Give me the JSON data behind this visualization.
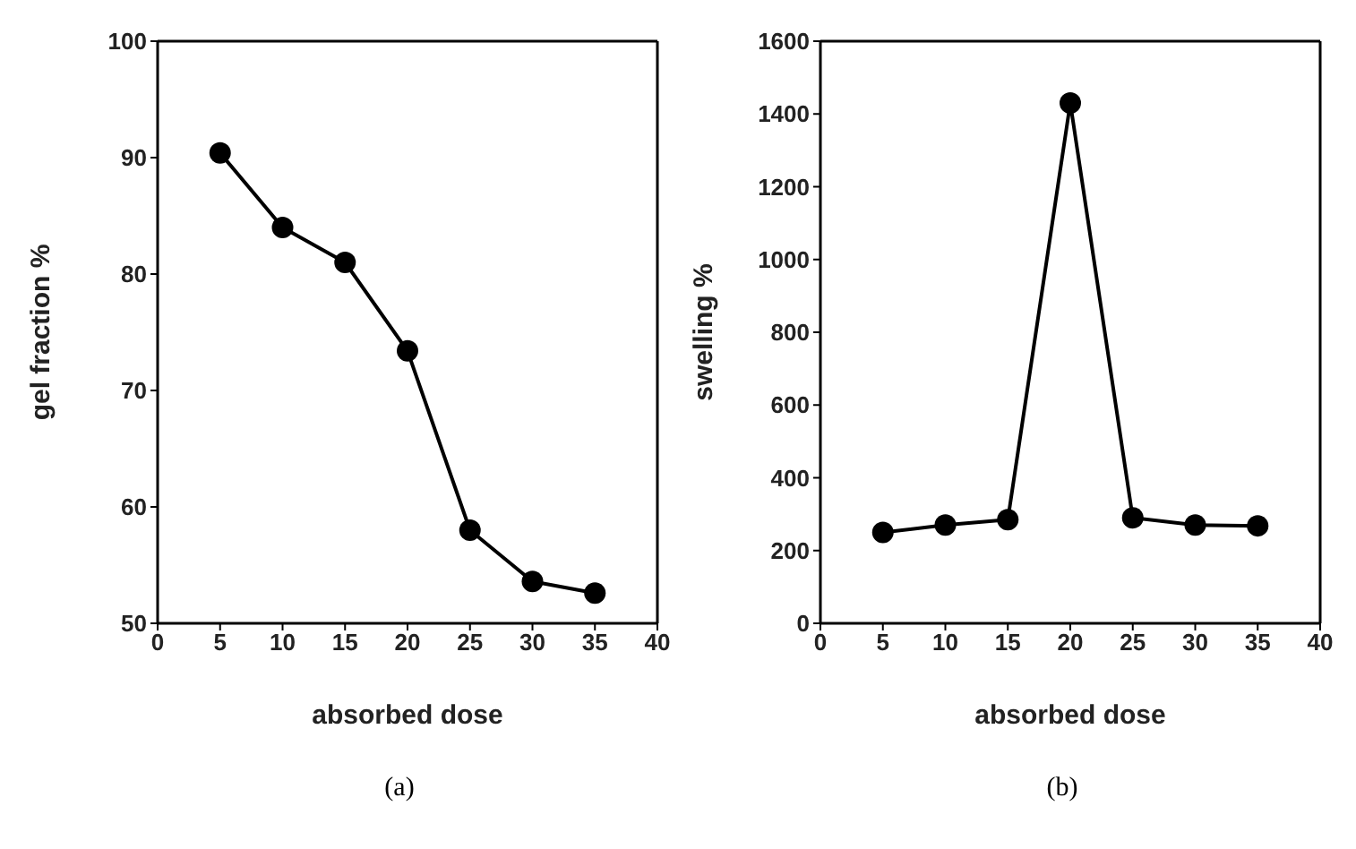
{
  "chart_data": [
    {
      "type": "line",
      "xlabel": "absorbed dose",
      "ylabel": "gel fraction %",
      "x": [
        5,
        10,
        15,
        20,
        25,
        30,
        35
      ],
      "series": [
        {
          "color": "#000000",
          "values": [
            90.4,
            84,
            81,
            73.4,
            58,
            53.6,
            52.6
          ]
        }
      ],
      "xlim": [
        0,
        40
      ],
      "xticks": [
        0,
        5,
        10,
        15,
        20,
        25,
        30,
        35,
        40
      ],
      "ylim": [
        50,
        100
      ],
      "yticks": [
        50,
        60,
        70,
        80,
        90,
        100
      ],
      "marker": "circle",
      "annotations": [
        "(a)"
      ]
    },
    {
      "type": "line",
      "xlabel": "absorbed dose",
      "ylabel": "swelling %",
      "x": [
        5,
        10,
        15,
        20,
        25,
        30,
        35
      ],
      "series": [
        {
          "color": "#000000",
          "values": [
            250,
            270,
            285,
            1430,
            290,
            270,
            268
          ]
        }
      ],
      "xlim": [
        0,
        40
      ],
      "xticks": [
        0,
        5,
        10,
        15,
        20,
        25,
        30,
        35,
        40
      ],
      "ylim": [
        0,
        1600
      ],
      "yticks": [
        0,
        200,
        400,
        600,
        800,
        1000,
        1200,
        1400,
        1600
      ],
      "marker": "circle",
      "annotations": [
        "(b)"
      ]
    }
  ]
}
